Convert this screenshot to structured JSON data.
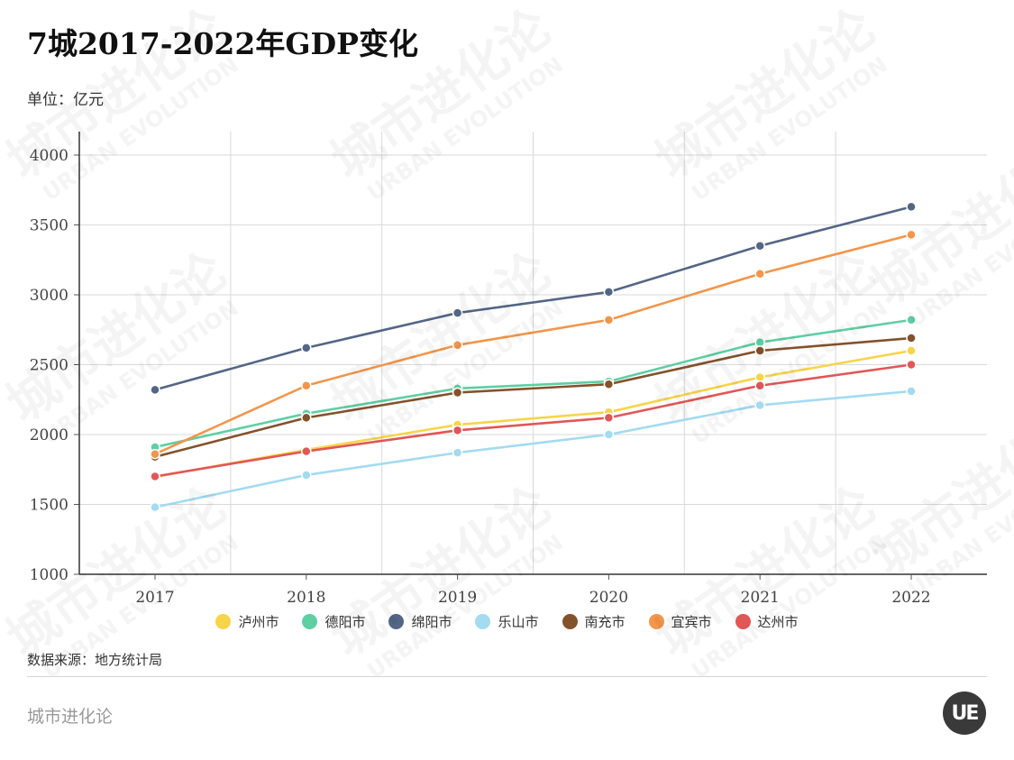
{
  "title": "7城2017-2022年GDP变化",
  "unit": "单位：亿元",
  "source": "数据来源：地方统计局",
  "brand": "城市进化论",
  "logo_text": "UE",
  "chart_data": {
    "type": "line",
    "x": [
      "2017",
      "2018",
      "2019",
      "2020",
      "2021",
      "2022"
    ],
    "ylim": [
      1000,
      4000
    ],
    "yticks": [
      1000,
      1500,
      2000,
      2500,
      3000,
      3500,
      4000
    ],
    "grid": true,
    "legend_position": "bottom",
    "series": [
      {
        "name": "泸州市",
        "color": "#f8d44a",
        "values": [
          1697,
          1890,
          2070,
          2160,
          2410,
          2600
        ]
      },
      {
        "name": "德阳市",
        "color": "#5ecfa3",
        "values": [
          1910,
          2150,
          2330,
          2380,
          2660,
          2820
        ]
      },
      {
        "name": "绵阳市",
        "color": "#546686",
        "values": [
          2320,
          2620,
          2870,
          3020,
          3350,
          3630
        ]
      },
      {
        "name": "乐山市",
        "color": "#a3dbf1",
        "values": [
          1480,
          1710,
          1870,
          2000,
          2210,
          2310
        ]
      },
      {
        "name": "南充市",
        "color": "#83522b",
        "values": [
          1840,
          2120,
          2300,
          2360,
          2600,
          2690
        ]
      },
      {
        "name": "宜宾市",
        "color": "#f3954a",
        "values": [
          1860,
          2350,
          2640,
          2820,
          3150,
          3430
        ]
      },
      {
        "name": "达州市",
        "color": "#e05757",
        "values": [
          1700,
          1880,
          2030,
          2120,
          2350,
          2500
        ]
      }
    ]
  },
  "watermark": {
    "cn": "城市进化论",
    "en": "URBAN EVOLUTION"
  }
}
